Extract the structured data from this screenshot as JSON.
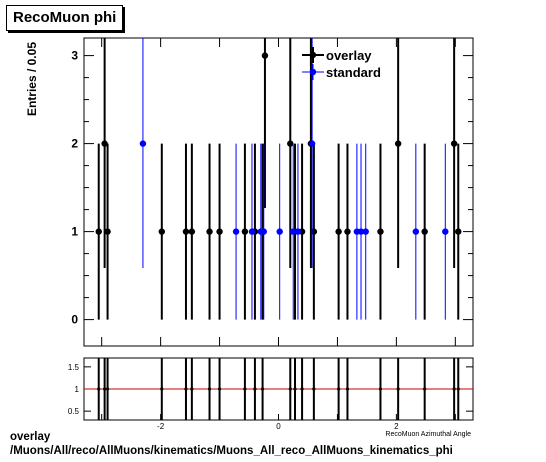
{
  "title": "RecoMuon phi",
  "footer": {
    "line1": "overlay",
    "line2": "/Muons/All/reco/AllMuons/kinematics/Muons_All_reco_AllMuons_kinematics_phi"
  },
  "colors": {
    "overlay": "#000000",
    "standard": "#0000ff",
    "ratio_line": "#cc0000"
  },
  "chart_data": [
    {
      "type": "scatter",
      "ylabel": "Entries / 0.05",
      "xlim": [
        -3.3,
        3.3
      ],
      "ylim": [
        -0.3,
        3.2
      ],
      "y_ticks": [
        0,
        1,
        2,
        3
      ],
      "legend": {
        "placement": "top-right",
        "entries": [
          "overlay",
          "standard"
        ]
      },
      "series": [
        {
          "name": "overlay",
          "x": [
            -3.05,
            -2.95,
            -2.9,
            -1.98,
            -1.57,
            -1.47,
            -1.17,
            -1.0,
            -0.57,
            -0.4,
            -0.27,
            -0.23,
            0.2,
            0.28,
            0.4,
            0.55,
            0.6,
            1.02,
            1.17,
            1.73,
            2.03,
            2.48,
            2.98,
            3.05
          ],
          "y": [
            1,
            2,
            1,
            1,
            1,
            1,
            1,
            1,
            1,
            1,
            1,
            3,
            2,
            1,
            1,
            2,
            1,
            1,
            1,
            1,
            2,
            1,
            2,
            1
          ]
        },
        {
          "name": "standard",
          "x": [
            -2.3,
            -0.72,
            -0.45,
            -0.3,
            -0.25,
            0.02,
            0.25,
            0.33,
            0.57,
            1.33,
            1.4,
            1.48,
            2.33,
            2.83
          ],
          "y": [
            2,
            1,
            1,
            1,
            1,
            1,
            1,
            1,
            2,
            1,
            1,
            1,
            1,
            1
          ]
        }
      ]
    },
    {
      "type": "scatter",
      "xlabel": "RecoMuon Azimuthal Angle",
      "xlim": [
        -3.3,
        3.3
      ],
      "ylim": [
        0.3,
        1.7
      ],
      "x_ticks": [
        -2,
        0,
        2
      ],
      "y_ticks": [
        0.5,
        1,
        1.5
      ],
      "reference_line": 1,
      "series": [
        {
          "name": "ratio",
          "x": [
            -3.05,
            -2.95,
            -2.9,
            -1.98,
            -1.57,
            -1.47,
            -1.17,
            -1.0,
            -0.57,
            -0.4,
            -0.27,
            0.2,
            0.28,
            0.4,
            0.6,
            1.02,
            1.17,
            1.73,
            2.03,
            2.48,
            2.98,
            3.05
          ],
          "y": [
            1,
            1,
            1,
            1,
            1,
            1,
            1,
            1,
            1,
            1,
            1,
            1,
            1,
            1,
            1,
            1,
            1,
            1,
            1,
            1,
            1,
            1
          ]
        }
      ]
    }
  ]
}
